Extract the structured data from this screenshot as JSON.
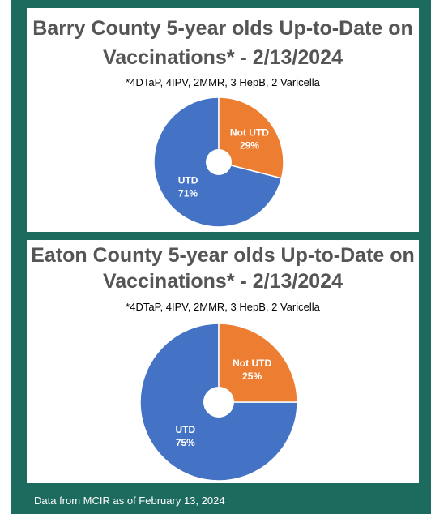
{
  "colors": {
    "frame": "#1d6b5e",
    "utd": "#4472c4",
    "not_utd": "#ed7d31",
    "title_text": "#555555"
  },
  "chart_data": [
    {
      "type": "pie",
      "title_line1": "Barry County 5-year olds Up-to-Date on",
      "title_line2": "Vaccinations* - 2/13/2024",
      "subtitle": "*4DTaP, 4IPV, 2MMR, 3 HepB, 2 Varicella",
      "donut": true,
      "slices": [
        {
          "label": "UTD",
          "value": 71,
          "value_label": "71%",
          "color": "#4472c4"
        },
        {
          "label": "Not UTD",
          "value": 29,
          "value_label": "29%",
          "color": "#ed7d31"
        }
      ]
    },
    {
      "type": "pie",
      "title_line1": "Eaton County 5-year olds Up-to-Date on",
      "title_line2": "Vaccinations* - 2/13/2024",
      "subtitle": "*4DTaP, 4IPV, 2MMR, 3 HepB, 2 Varicella",
      "donut": true,
      "slices": [
        {
          "label": "UTD",
          "value": 75,
          "value_label": "75%",
          "color": "#4472c4"
        },
        {
          "label": "Not UTD",
          "value": 25,
          "value_label": "25%",
          "color": "#ed7d31"
        }
      ]
    }
  ],
  "footer": {
    "text": "Data from MCIR as of February 13, 2024"
  }
}
